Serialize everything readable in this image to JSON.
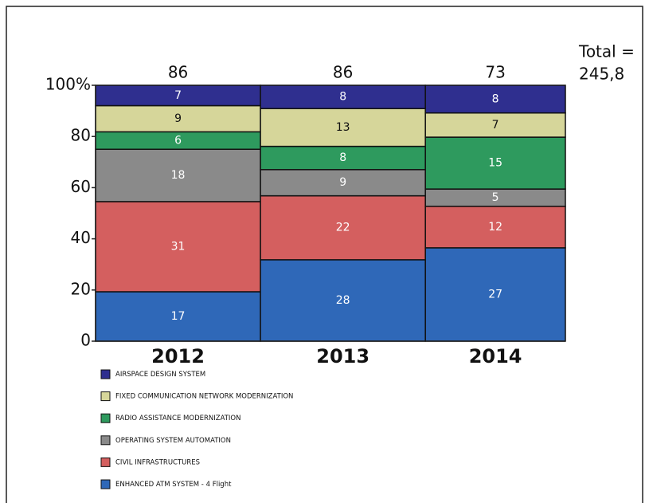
{
  "chart_data": {
    "type": "marimekko",
    "categories": [
      "2012",
      "2013",
      "2014"
    ],
    "totals": [
      86,
      86,
      73
    ],
    "total_label": [
      "Total =",
      "245,8"
    ],
    "ylim": [
      0,
      100
    ],
    "yticks": [
      0,
      20,
      40,
      60,
      80,
      {
        "value": 100,
        "label": "100%"
      }
    ],
    "series": [
      {
        "name": "ENHANCED ATM SYSTEM - 4 Flight",
        "color": "#2f68b8",
        "values": [
          17,
          28,
          27
        ]
      },
      {
        "name": "CIVIL INFRASTRUCTURES",
        "color": "#d45f5f",
        "values": [
          31,
          22,
          12
        ]
      },
      {
        "name": "OPERATING SYSTEM AUTOMATION",
        "color": "#8a8a8a",
        "values": [
          18,
          9,
          5
        ]
      },
      {
        "name": "RADIO ASSISTANCE MODERNIZATION",
        "color": "#2e9a5e",
        "values": [
          6,
          8,
          15
        ]
      },
      {
        "name": "FIXED COMMUNICATION NETWORK MODERNIZATION",
        "color": "#d6d69a",
        "values": [
          9,
          13,
          7
        ]
      },
      {
        "name": "AIRSPACE DESIGN SYSTEM",
        "color": "#2f2f8f",
        "values": [
          7,
          8,
          8
        ]
      }
    ]
  }
}
